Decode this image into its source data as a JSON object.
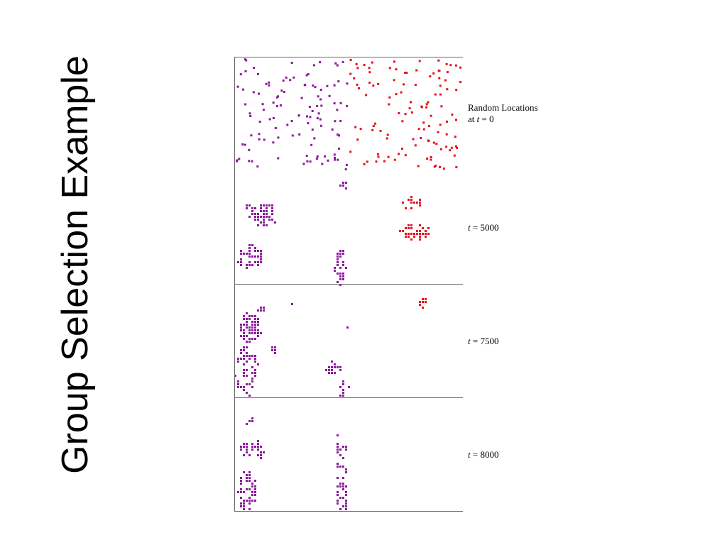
{
  "slide": {
    "title": "Group Selection Example"
  },
  "figure": {
    "colors": {
      "purple": "#8b1a9a",
      "red": "#e8101c",
      "frame": "#666666"
    },
    "panels": [
      {
        "label_line1": "Random Locations",
        "label_prefix": "at ",
        "label_var": "t",
        "label_suffix": " = 0"
      },
      {
        "label_prefix": "",
        "label_var": "t",
        "label_suffix": " = 5000"
      },
      {
        "label_prefix": "",
        "label_var": "t",
        "label_suffix": " = 7500"
      },
      {
        "label_prefix": "",
        "label_var": "t",
        "label_suffix": " = 8000"
      }
    ]
  }
}
